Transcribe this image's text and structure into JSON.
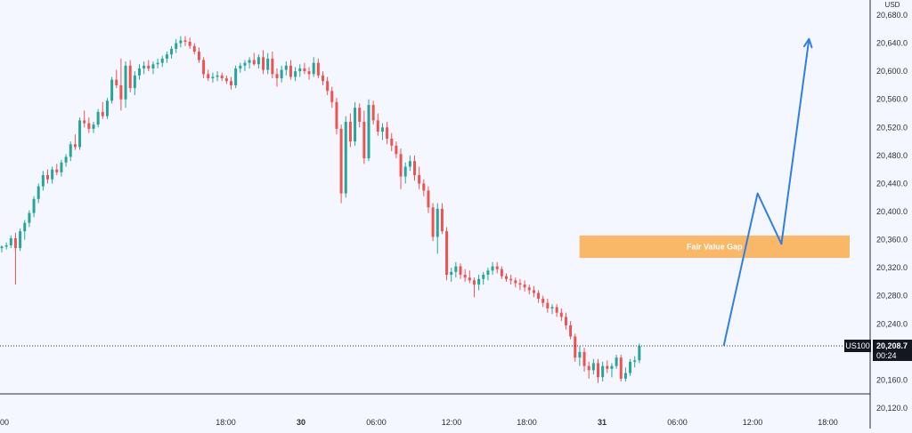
{
  "chart_data": {
    "type": "candlestick",
    "symbol": "US100",
    "currency": "USD",
    "last_price": "20,208.7",
    "countdown": "00:24",
    "ylim": [
      20090,
      20700
    ],
    "y_ticks": [
      "20,120.0",
      "20,160.0",
      "20,200.0",
      "20,240.0",
      "20,280.0",
      "20,320.0",
      "20,360.0",
      "20,400.0",
      "20,440.0",
      "20,480.0",
      "20,520.0",
      "20,560.0",
      "20,600.0",
      "20,640.0",
      "20,680.0"
    ],
    "y_tick_values": [
      20120,
      20160,
      20200,
      20240,
      20280,
      20320,
      20360,
      20400,
      20440,
      20480,
      20520,
      20560,
      20600,
      20640,
      20680
    ],
    "time_ticks": [
      {
        "label": "00",
        "hours": 0,
        "bold": false
      },
      {
        "label": "18:00",
        "hours": 18,
        "bold": false
      },
      {
        "label": "30",
        "hours": 24,
        "bold": true
      },
      {
        "label": "06:00",
        "hours": 30,
        "bold": false
      },
      {
        "label": "12:00",
        "hours": 36,
        "bold": false
      },
      {
        "label": "18:00",
        "hours": 42,
        "bold": false
      },
      {
        "label": "31",
        "hours": 48,
        "bold": true
      },
      {
        "label": "06:00",
        "hours": 54,
        "bold": false
      },
      {
        "label": "12:00",
        "hours": 60,
        "bold": false
      },
      {
        "label": "18:00",
        "hours": 66,
        "bold": false
      }
    ],
    "candles": [
      [
        20348,
        20352,
        20342,
        20350
      ],
      [
        20350,
        20356,
        20346,
        20352
      ],
      [
        20352,
        20366,
        20348,
        20362
      ],
      [
        20362,
        20370,
        20296,
        20348
      ],
      [
        20348,
        20376,
        20344,
        20372
      ],
      [
        20372,
        20388,
        20360,
        20384
      ],
      [
        20384,
        20402,
        20378,
        20398
      ],
      [
        20398,
        20422,
        20392,
        20418
      ],
      [
        20418,
        20440,
        20412,
        20436
      ],
      [
        20436,
        20458,
        20430,
        20452
      ],
      [
        20452,
        20460,
        20440,
        20446
      ],
      [
        20446,
        20464,
        20440,
        20460
      ],
      [
        20460,
        20468,
        20452,
        20456
      ],
      [
        20456,
        20474,
        20450,
        20470
      ],
      [
        20470,
        20482,
        20464,
        20478
      ],
      [
        20478,
        20500,
        20472,
        20496
      ],
      [
        20496,
        20510,
        20488,
        20492
      ],
      [
        20492,
        20534,
        20488,
        20530
      ],
      [
        20530,
        20544,
        20520,
        20526
      ],
      [
        20526,
        20534,
        20512,
        20518
      ],
      [
        20518,
        20528,
        20512,
        20524
      ],
      [
        20524,
        20546,
        20520,
        20542
      ],
      [
        20542,
        20556,
        20532,
        20536
      ],
      [
        20536,
        20562,
        20532,
        20558
      ],
      [
        20558,
        20592,
        20554,
        20588
      ],
      [
        20588,
        20602,
        20576,
        20580
      ],
      [
        20580,
        20618,
        20544,
        20560
      ],
      [
        20560,
        20614,
        20548,
        20608
      ],
      [
        20608,
        20616,
        20570,
        20576
      ],
      [
        20576,
        20600,
        20566,
        20594
      ],
      [
        20594,
        20610,
        20588,
        20604
      ],
      [
        20604,
        20614,
        20596,
        20608
      ],
      [
        20608,
        20616,
        20600,
        20604
      ],
      [
        20604,
        20614,
        20596,
        20610
      ],
      [
        20610,
        20618,
        20604,
        20612
      ],
      [
        20612,
        20622,
        20606,
        20618
      ],
      [
        20618,
        20628,
        20612,
        20624
      ],
      [
        20624,
        20636,
        20618,
        20632
      ],
      [
        20632,
        20646,
        20626,
        20640
      ],
      [
        20640,
        20650,
        20634,
        20644
      ],
      [
        20644,
        20650,
        20636,
        20642
      ],
      [
        20642,
        20648,
        20632,
        20636
      ],
      [
        20636,
        20640,
        20624,
        20628
      ],
      [
        20628,
        20634,
        20612,
        20616
      ],
      [
        20616,
        20620,
        20590,
        20596
      ],
      [
        20596,
        20602,
        20586,
        20590
      ],
      [
        20590,
        20598,
        20584,
        20592
      ],
      [
        20592,
        20600,
        20586,
        20594
      ],
      [
        20594,
        20598,
        20586,
        20590
      ],
      [
        20590,
        20594,
        20582,
        20586
      ],
      [
        20586,
        20592,
        20574,
        20580
      ],
      [
        20580,
        20608,
        20576,
        20604
      ],
      [
        20604,
        20612,
        20598,
        20608
      ],
      [
        20608,
        20616,
        20600,
        20612
      ],
      [
        20612,
        20620,
        20604,
        20616
      ],
      [
        20616,
        20626,
        20608,
        20610
      ],
      [
        20610,
        20624,
        20604,
        20620
      ],
      [
        20620,
        20630,
        20596,
        20602
      ],
      [
        20602,
        20626,
        20596,
        20618
      ],
      [
        20618,
        20628,
        20590,
        20596
      ],
      [
        20596,
        20604,
        20578,
        20590
      ],
      [
        20590,
        20608,
        20584,
        20602
      ],
      [
        20602,
        20614,
        20594,
        20608
      ],
      [
        20608,
        20616,
        20588,
        20592
      ],
      [
        20592,
        20606,
        20586,
        20600
      ],
      [
        20600,
        20610,
        20592,
        20604
      ],
      [
        20604,
        20612,
        20596,
        20600
      ],
      [
        20600,
        20606,
        20588,
        20596
      ],
      [
        20596,
        20620,
        20592,
        20612
      ],
      [
        20612,
        20618,
        20590,
        20594
      ],
      [
        20594,
        20600,
        20580,
        20586
      ],
      [
        20586,
        20592,
        20566,
        20572
      ],
      [
        20572,
        20578,
        20548,
        20556
      ],
      [
        20556,
        20562,
        20510,
        20518
      ],
      [
        20518,
        20524,
        20412,
        20426
      ],
      [
        20426,
        20536,
        20420,
        20528
      ],
      [
        20528,
        20540,
        20492,
        20500
      ],
      [
        20500,
        20556,
        20494,
        20548
      ],
      [
        20548,
        20554,
        20520,
        20528
      ],
      [
        20528,
        20544,
        20468,
        20476
      ],
      [
        20476,
        20560,
        20472,
        20552
      ],
      [
        20552,
        20558,
        20524,
        20530
      ],
      [
        20530,
        20540,
        20508,
        20514
      ],
      [
        20514,
        20526,
        20502,
        20520
      ],
      [
        20520,
        20528,
        20496,
        20504
      ],
      [
        20504,
        20512,
        20486,
        20494
      ],
      [
        20494,
        20500,
        20476,
        20482
      ],
      [
        20482,
        20490,
        20432,
        20450
      ],
      [
        20450,
        20470,
        20440,
        20464
      ],
      [
        20464,
        20480,
        20458,
        20472
      ],
      [
        20472,
        20480,
        20444,
        20452
      ],
      [
        20452,
        20464,
        20432,
        20440
      ],
      [
        20440,
        20446,
        20422,
        20430
      ],
      [
        20430,
        20436,
        20398,
        20406
      ],
      [
        20406,
        20412,
        20358,
        20364
      ],
      [
        20364,
        20412,
        20340,
        20404
      ],
      [
        20404,
        20412,
        20368,
        20372
      ],
      [
        20372,
        20378,
        20302,
        20310
      ],
      [
        20310,
        20320,
        20300,
        20314
      ],
      [
        20314,
        20328,
        20306,
        20322
      ],
      [
        20322,
        20326,
        20304,
        20310
      ],
      [
        20310,
        20318,
        20300,
        20306
      ],
      [
        20306,
        20316,
        20298,
        20302
      ],
      [
        20302,
        20306,
        20278,
        20296
      ],
      [
        20296,
        20310,
        20288,
        20304
      ],
      [
        20304,
        20314,
        20296,
        20310
      ],
      [
        20310,
        20320,
        20302,
        20316
      ],
      [
        20316,
        20328,
        20310,
        20322
      ],
      [
        20322,
        20328,
        20312,
        20318
      ],
      [
        20318,
        20322,
        20304,
        20308
      ],
      [
        20308,
        20312,
        20300,
        20304
      ],
      [
        20304,
        20310,
        20296,
        20302
      ],
      [
        20302,
        20306,
        20292,
        20298
      ],
      [
        20298,
        20304,
        20288,
        20296
      ],
      [
        20296,
        20302,
        20286,
        20292
      ],
      [
        20292,
        20296,
        20282,
        20288
      ],
      [
        20288,
        20294,
        20278,
        20284
      ],
      [
        20284,
        20288,
        20270,
        20276
      ],
      [
        20276,
        20280,
        20264,
        20270
      ],
      [
        20270,
        20276,
        20256,
        20262
      ],
      [
        20262,
        20268,
        20254,
        20264
      ],
      [
        20264,
        20268,
        20250,
        20256
      ],
      [
        20256,
        20262,
        20244,
        20250
      ],
      [
        20250,
        20256,
        20232,
        20238
      ],
      [
        20238,
        20244,
        20218,
        20222
      ],
      [
        20222,
        20226,
        20186,
        20192
      ],
      [
        20192,
        20208,
        20180,
        20200
      ],
      [
        20200,
        20206,
        20172,
        20180
      ],
      [
        20180,
        20186,
        20162,
        20174
      ],
      [
        20174,
        20190,
        20168,
        20184
      ],
      [
        20184,
        20190,
        20156,
        20164
      ],
      [
        20164,
        20186,
        20158,
        20180
      ],
      [
        20180,
        20188,
        20170,
        20176
      ],
      [
        20176,
        20184,
        20164,
        20180
      ],
      [
        20180,
        20196,
        20176,
        20192
      ],
      [
        20192,
        20196,
        20158,
        20162
      ],
      [
        20162,
        20178,
        20158,
        20170
      ],
      [
        20170,
        20190,
        20166,
        20186
      ],
      [
        20186,
        20194,
        20178,
        20188
      ],
      [
        20188,
        20212,
        20184,
        20208.7
      ]
    ],
    "annotations": {
      "fvg": {
        "label": "Fair Value Gap",
        "y_low": 20334,
        "y_high": 20366,
        "x_start_hours": 46.2,
        "x_end_hours": 76
      },
      "projection": [
        [
          57.7,
          20208.7
        ],
        [
          60.4,
          20426
        ],
        [
          62.3,
          20354
        ],
        [
          64.5,
          20646
        ]
      ]
    }
  },
  "colors": {
    "background": "#f4f7ff",
    "up": "#26a69a",
    "down": "#ef5350",
    "fvg": "#f9b867",
    "projection": "#2f7fe6",
    "axis_text": "#2a2e39",
    "badge": "#131722"
  }
}
